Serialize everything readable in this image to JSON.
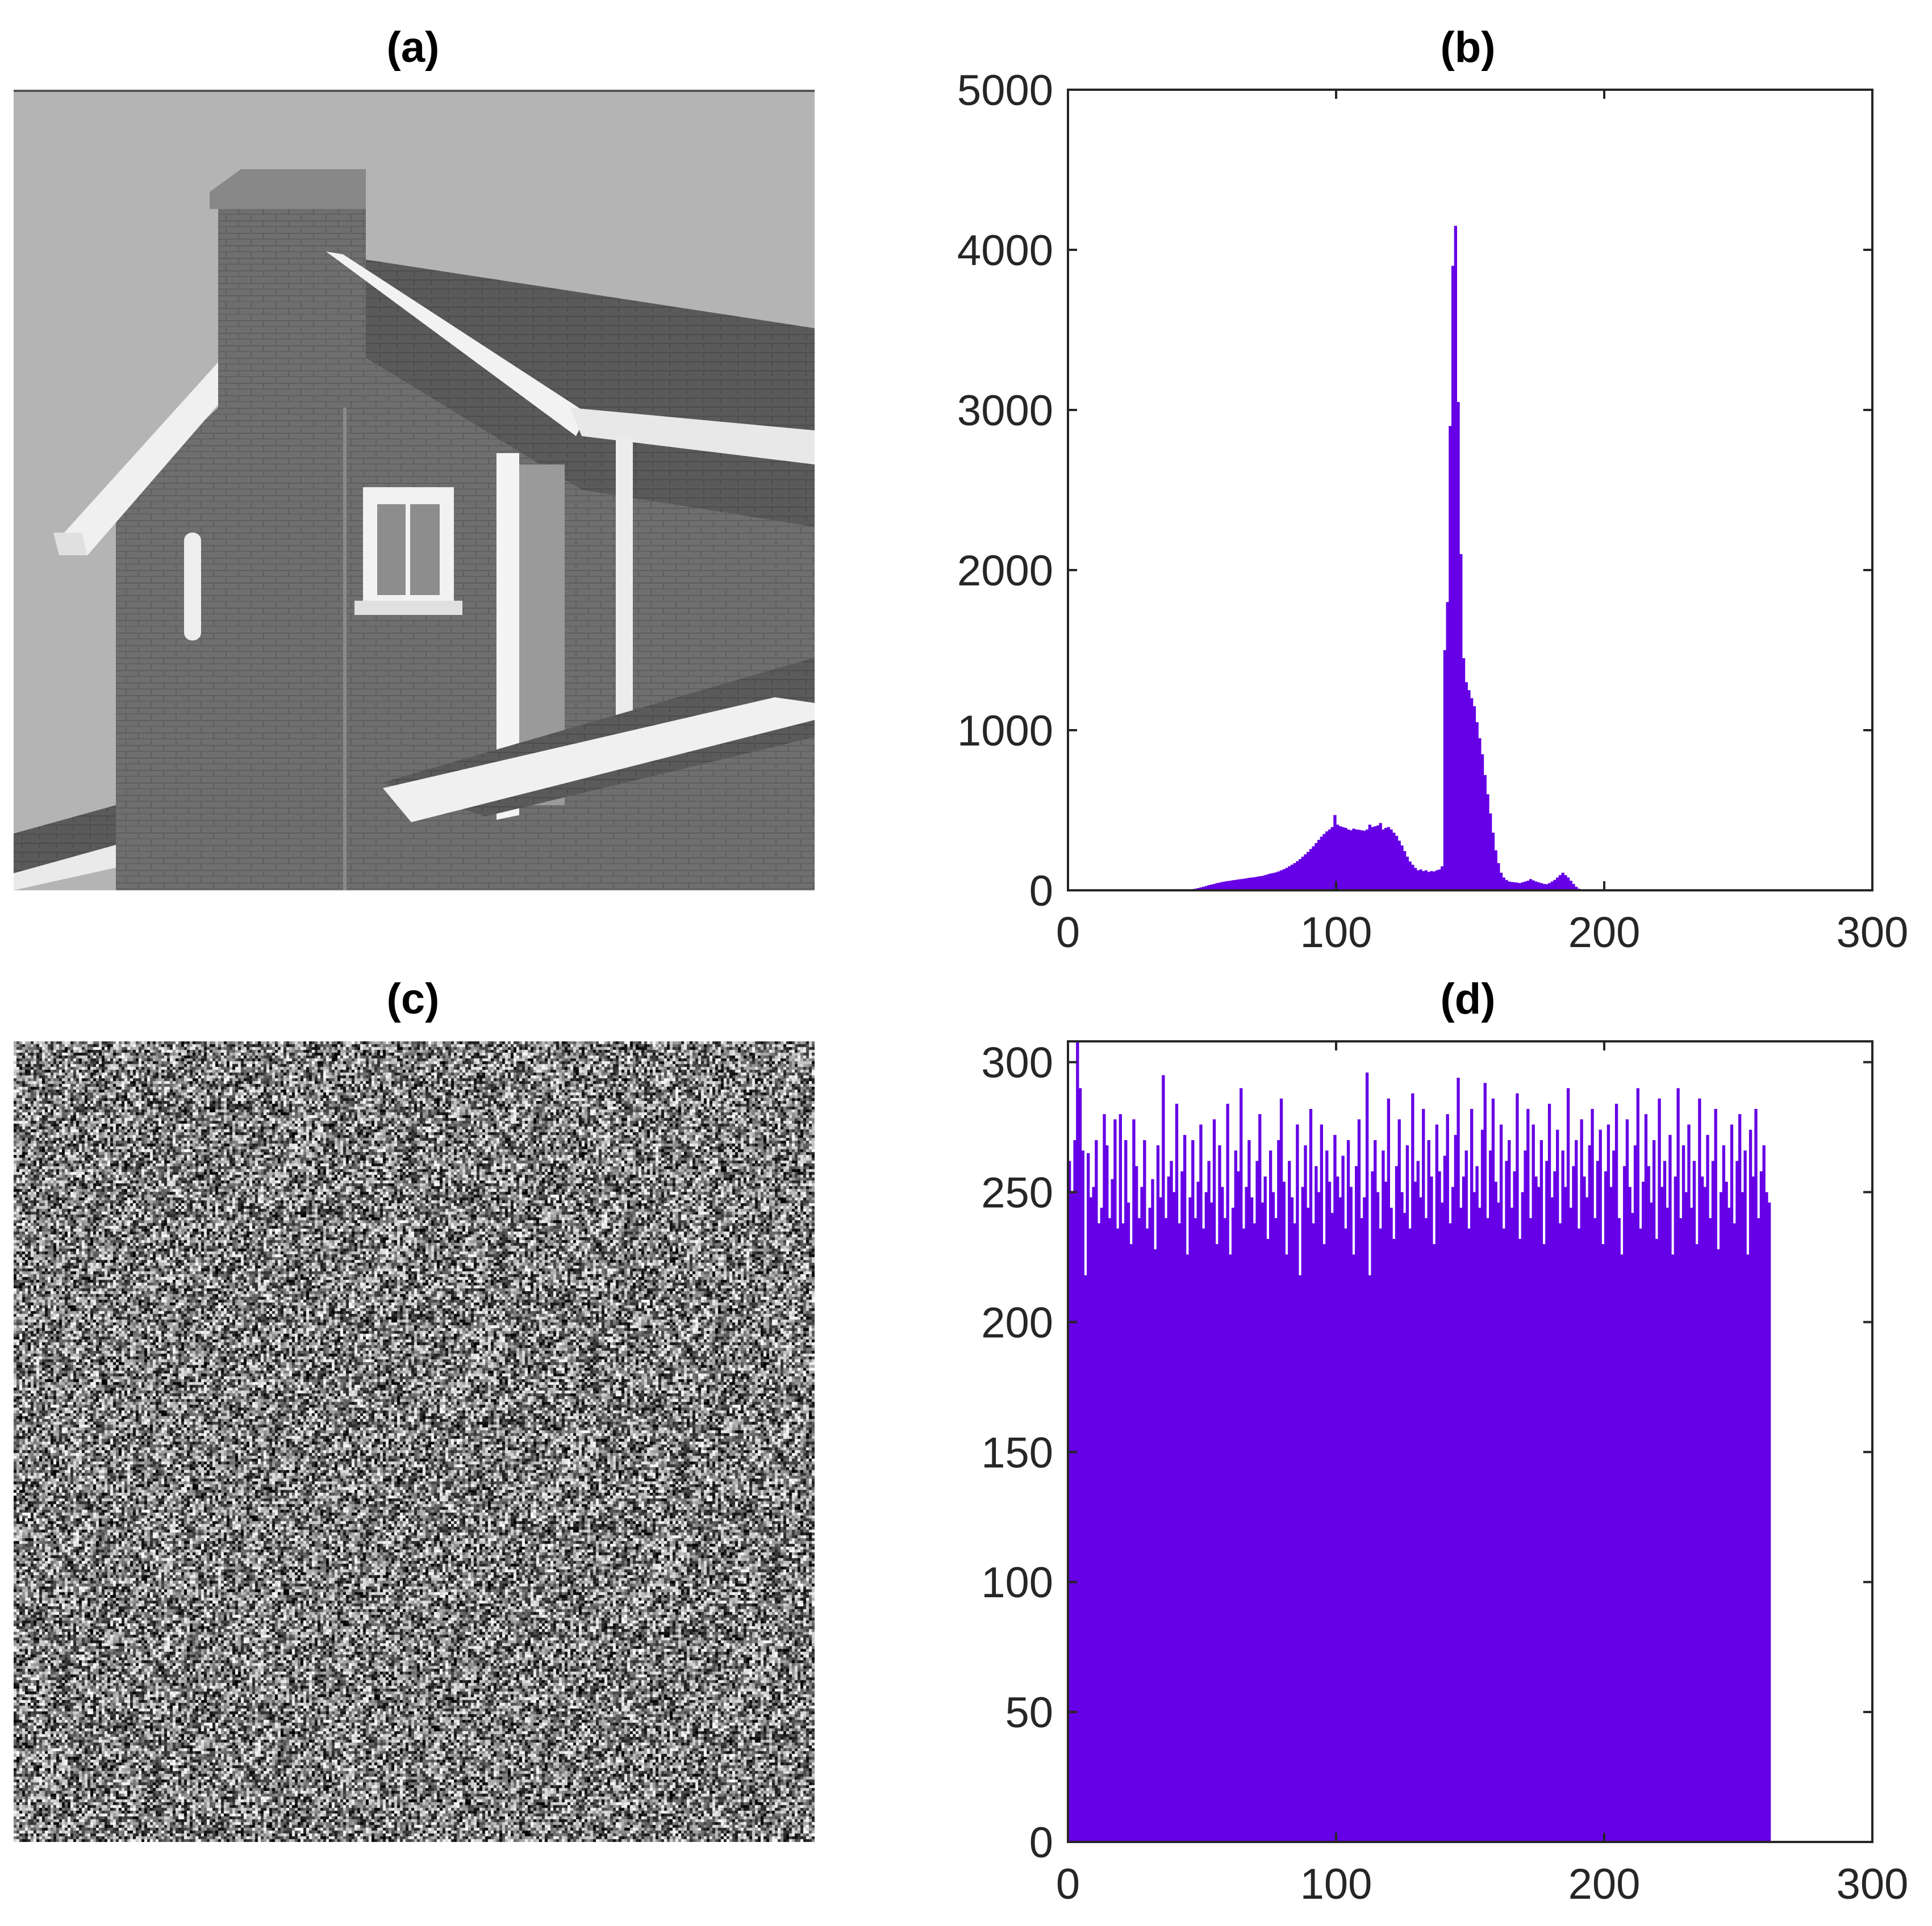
{
  "panels": [
    {
      "id": "a",
      "title": "(a)",
      "kind": "image",
      "content": "house-photo"
    },
    {
      "id": "b",
      "title": "(b)",
      "kind": "histogram"
    },
    {
      "id": "c",
      "title": "(c)",
      "kind": "image",
      "content": "noise-image"
    },
    {
      "id": "d",
      "title": "(d)",
      "kind": "histogram"
    }
  ],
  "colors": {
    "bar": "#6600E6",
    "axis": "#262626",
    "text": "#262626"
  },
  "chart_data": [
    {
      "panel": "(b)",
      "type": "bar",
      "title": "(b)",
      "xlabel": "",
      "ylabel": "",
      "xlim": [
        0,
        300
      ],
      "ylim": [
        0,
        5000
      ],
      "xticks": [
        0,
        100,
        200,
        300
      ],
      "yticks": [
        0,
        1000,
        2000,
        3000,
        4000,
        5000
      ],
      "grid": false,
      "bin_start": 0,
      "bin_width": 1,
      "values": [
        0,
        0,
        0,
        0,
        0,
        0,
        0,
        0,
        0,
        0,
        0,
        0,
        0,
        0,
        0,
        0,
        0,
        0,
        0,
        0,
        0,
        0,
        0,
        0,
        0,
        0,
        0,
        0,
        0,
        0,
        0,
        0,
        0,
        0,
        0,
        0,
        0,
        0,
        0,
        0,
        0,
        0,
        0,
        0,
        0,
        5,
        8,
        10,
        14,
        18,
        22,
        27,
        32,
        36,
        40,
        45,
        48,
        52,
        55,
        58,
        60,
        63,
        65,
        68,
        70,
        72,
        75,
        78,
        80,
        82,
        85,
        88,
        90,
        95,
        100,
        105,
        108,
        112,
        118,
        125,
        132,
        140,
        150,
        160,
        170,
        182,
        195,
        210,
        225,
        240,
        258,
        275,
        295,
        315,
        335,
        352,
        368,
        380,
        395,
        470,
        410,
        400,
        395,
        390,
        380,
        375,
        385,
        380,
        378,
        375,
        372,
        380,
        410,
        395,
        400,
        405,
        420,
        380,
        390,
        395,
        380,
        360,
        340,
        310,
        280,
        245,
        210,
        180,
        160,
        140,
        125,
        130,
        120,
        125,
        115,
        120,
        118,
        125,
        130,
        150,
        1500,
        1800,
        2900,
        3900,
        4150,
        3050,
        2100,
        1450,
        1300,
        1250,
        1200,
        1150,
        1050,
        950,
        850,
        720,
        600,
        480,
        360,
        250,
        170,
        110,
        80,
        65,
        55,
        52,
        50,
        48,
        45,
        50,
        55,
        60,
        70,
        62,
        55,
        50,
        45,
        40,
        38,
        45,
        55,
        65,
        80,
        95,
        110,
        95,
        80,
        60,
        40,
        22,
        10,
        4,
        0,
        0,
        0,
        0,
        0,
        0,
        0,
        0,
        0,
        0,
        0,
        0,
        0,
        0,
        0,
        0,
        0,
        0,
        0
      ]
    },
    {
      "panel": "(d)",
      "type": "bar",
      "title": "(d)",
      "xlabel": "",
      "ylabel": "",
      "xlim": [
        0,
        300
      ],
      "ylim": [
        0,
        308
      ],
      "xticks": [
        0,
        100,
        200,
        300
      ],
      "yticks": [
        0,
        50,
        100,
        150,
        200,
        250,
        300
      ],
      "grid": false,
      "bin_start": 0,
      "bin_width": 1,
      "values": [
        262,
        250,
        270,
        308,
        290,
        266,
        218,
        265,
        248,
        252,
        270,
        238,
        244,
        280,
        268,
        240,
        255,
        278,
        236,
        280,
        238,
        270,
        246,
        230,
        278,
        260,
        240,
        252,
        270,
        236,
        244,
        255,
        228,
        268,
        248,
        295,
        240,
        256,
        262,
        250,
        284,
        238,
        258,
        272,
        226,
        248,
        270,
        240,
        254,
        276,
        236,
        250,
        262,
        246,
        278,
        230,
        268,
        252,
        240,
        284,
        226,
        244,
        266,
        258,
        290,
        236,
        252,
        270,
        248,
        238,
        262,
        280,
        246,
        256,
        232,
        266,
        250,
        240,
        270,
        286,
        254,
        226,
        262,
        248,
        238,
        276,
        218,
        252,
        268,
        244,
        282,
        238,
        260,
        250,
        276,
        230,
        266,
        254,
        242,
        272,
        256,
        248,
        264,
        236,
        270,
        252,
        226,
        260,
        278,
        240,
        248,
        296,
        218,
        258,
        270,
        250,
        236,
        266,
        254,
        286,
        244,
        232,
        260,
        278,
        250,
        242,
        268,
        236,
        288,
        254,
        262,
        248,
        282,
        240,
        270,
        256,
        230,
        276,
        258,
        246,
        264,
        280,
        238,
        252,
        272,
        294,
        244,
        256,
        266,
        236,
        282,
        250,
        260,
        244,
        274,
        292,
        240,
        266,
        286,
        254,
        246,
        276,
        236,
        262,
        270,
        244,
        258,
        288,
        232,
        250,
        266,
        282,
        240,
        276,
        256,
        252,
        270,
        230,
        262,
        284,
        248,
        258,
        274,
        238,
        266,
        252,
        290,
        244,
        260,
        270,
        236,
        278,
        256,
        248,
        268,
        282,
        240,
        262,
        274,
        230,
        258,
        276,
        252,
        266,
        284,
        240,
        226,
        260,
        278,
        252,
        242,
        268,
        290,
        236,
        254,
        280,
        260,
        246,
        270,
        232,
        286,
        252,
        262,
        244,
        272,
        226,
        256,
        290,
        240,
        268,
        250,
        276,
        244,
        262,
        230,
        286,
        256,
        252,
        272,
        240,
        262,
        282,
        228,
        250,
        268,
        254,
        244,
        276,
        238,
        262,
        280,
        250,
        266,
        226,
        274,
        256,
        282,
        240,
        258,
        268,
        250,
        246
      ]
    }
  ]
}
